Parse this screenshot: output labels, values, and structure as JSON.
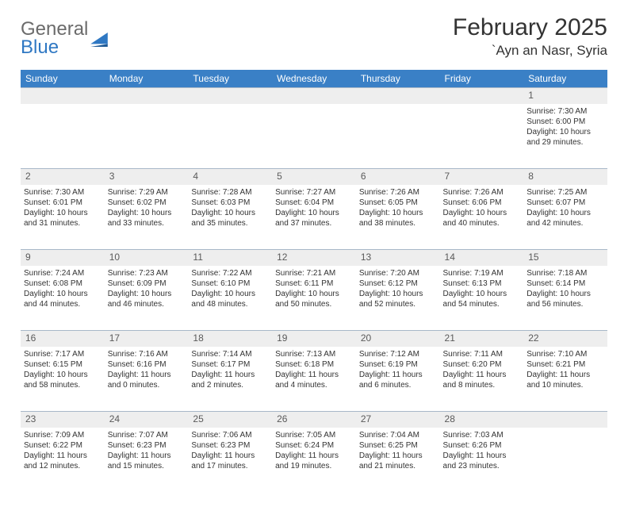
{
  "logo": {
    "general": "General",
    "blue": "Blue"
  },
  "title": "February 2025",
  "location": "`Ayn an Nasr, Syria",
  "colors": {
    "header_bg": "#3a80c6",
    "header_fg": "#ffffff",
    "daynum_bg": "#eeeeee",
    "rule": "#a8b8c8",
    "logo_gray": "#6b6b6b",
    "logo_blue": "#2f78c3"
  },
  "weekdays": [
    "Sunday",
    "Monday",
    "Tuesday",
    "Wednesday",
    "Thursday",
    "Friday",
    "Saturday"
  ],
  "weeks": [
    {
      "nums": [
        "",
        "",
        "",
        "",
        "",
        "",
        "1"
      ],
      "cells": [
        null,
        null,
        null,
        null,
        null,
        null,
        {
          "sunrise": "7:30 AM",
          "sunset": "6:00 PM",
          "day_h": 10,
          "day_m": 29
        }
      ]
    },
    {
      "nums": [
        "2",
        "3",
        "4",
        "5",
        "6",
        "7",
        "8"
      ],
      "cells": [
        {
          "sunrise": "7:30 AM",
          "sunset": "6:01 PM",
          "day_h": 10,
          "day_m": 31
        },
        {
          "sunrise": "7:29 AM",
          "sunset": "6:02 PM",
          "day_h": 10,
          "day_m": 33
        },
        {
          "sunrise": "7:28 AM",
          "sunset": "6:03 PM",
          "day_h": 10,
          "day_m": 35
        },
        {
          "sunrise": "7:27 AM",
          "sunset": "6:04 PM",
          "day_h": 10,
          "day_m": 37
        },
        {
          "sunrise": "7:26 AM",
          "sunset": "6:05 PM",
          "day_h": 10,
          "day_m": 38
        },
        {
          "sunrise": "7:26 AM",
          "sunset": "6:06 PM",
          "day_h": 10,
          "day_m": 40
        },
        {
          "sunrise": "7:25 AM",
          "sunset": "6:07 PM",
          "day_h": 10,
          "day_m": 42
        }
      ]
    },
    {
      "nums": [
        "9",
        "10",
        "11",
        "12",
        "13",
        "14",
        "15"
      ],
      "cells": [
        {
          "sunrise": "7:24 AM",
          "sunset": "6:08 PM",
          "day_h": 10,
          "day_m": 44
        },
        {
          "sunrise": "7:23 AM",
          "sunset": "6:09 PM",
          "day_h": 10,
          "day_m": 46
        },
        {
          "sunrise": "7:22 AM",
          "sunset": "6:10 PM",
          "day_h": 10,
          "day_m": 48
        },
        {
          "sunrise": "7:21 AM",
          "sunset": "6:11 PM",
          "day_h": 10,
          "day_m": 50
        },
        {
          "sunrise": "7:20 AM",
          "sunset": "6:12 PM",
          "day_h": 10,
          "day_m": 52
        },
        {
          "sunrise": "7:19 AM",
          "sunset": "6:13 PM",
          "day_h": 10,
          "day_m": 54
        },
        {
          "sunrise": "7:18 AM",
          "sunset": "6:14 PM",
          "day_h": 10,
          "day_m": 56
        }
      ]
    },
    {
      "nums": [
        "16",
        "17",
        "18",
        "19",
        "20",
        "21",
        "22"
      ],
      "cells": [
        {
          "sunrise": "7:17 AM",
          "sunset": "6:15 PM",
          "day_h": 10,
          "day_m": 58
        },
        {
          "sunrise": "7:16 AM",
          "sunset": "6:16 PM",
          "day_h": 11,
          "day_m": 0
        },
        {
          "sunrise": "7:14 AM",
          "sunset": "6:17 PM",
          "day_h": 11,
          "day_m": 2
        },
        {
          "sunrise": "7:13 AM",
          "sunset": "6:18 PM",
          "day_h": 11,
          "day_m": 4
        },
        {
          "sunrise": "7:12 AM",
          "sunset": "6:19 PM",
          "day_h": 11,
          "day_m": 6
        },
        {
          "sunrise": "7:11 AM",
          "sunset": "6:20 PM",
          "day_h": 11,
          "day_m": 8
        },
        {
          "sunrise": "7:10 AM",
          "sunset": "6:21 PM",
          "day_h": 11,
          "day_m": 10
        }
      ]
    },
    {
      "nums": [
        "23",
        "24",
        "25",
        "26",
        "27",
        "28",
        ""
      ],
      "cells": [
        {
          "sunrise": "7:09 AM",
          "sunset": "6:22 PM",
          "day_h": 11,
          "day_m": 12
        },
        {
          "sunrise": "7:07 AM",
          "sunset": "6:23 PM",
          "day_h": 11,
          "day_m": 15
        },
        {
          "sunrise": "7:06 AM",
          "sunset": "6:23 PM",
          "day_h": 11,
          "day_m": 17
        },
        {
          "sunrise": "7:05 AM",
          "sunset": "6:24 PM",
          "day_h": 11,
          "day_m": 19
        },
        {
          "sunrise": "7:04 AM",
          "sunset": "6:25 PM",
          "day_h": 11,
          "day_m": 21
        },
        {
          "sunrise": "7:03 AM",
          "sunset": "6:26 PM",
          "day_h": 11,
          "day_m": 23
        },
        null
      ]
    }
  ]
}
